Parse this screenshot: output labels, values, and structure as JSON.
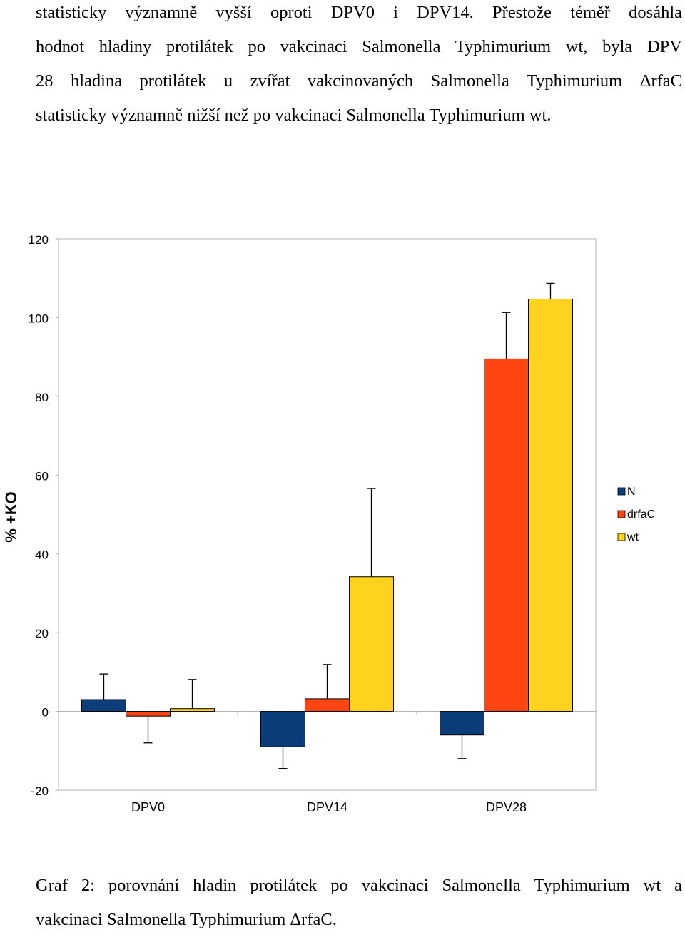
{
  "paragraph_lines": [
    "statisticky významně vyšší oproti DPV0 i DPV14. Přestože téměř dosáhla",
    "hodnot hladiny protilátek po vakcinaci  Salmonella Typhimurium wt, byla DPV",
    "28 hladina protilátek u zvířat vakcinovaných Salmonella Typhimurium ΔrfaC",
    "statisticky významně nižší než po vakcinaci Salmonella Typhimurium wt."
  ],
  "caption_lines": [
    "Graf 2: porovnání hladin protilátek po vakcinaci  Salmonella Typhimurium wt a",
    "vakcinaci  Salmonella Typhimurium ΔrfaC."
  ],
  "chart_data": {
    "type": "bar",
    "categories": [
      "DPV0",
      "DPV14",
      "DPV28"
    ],
    "ylabel": "% +KO",
    "xlabel": "",
    "ylim": [
      -20,
      120
    ],
    "yticks": [
      -20,
      0,
      20,
      40,
      60,
      80,
      100,
      120
    ],
    "grid": false,
    "legend_position": "right",
    "series": [
      {
        "name": "N",
        "color": "#0a3d7a",
        "values": [
          3.0,
          -9.0,
          -6.0
        ],
        "errors": [
          6.5,
          5.5,
          6.0
        ]
      },
      {
        "name": "drfaC",
        "color": "#ff4511",
        "values": [
          -1.2,
          3.2,
          89.5
        ],
        "errors": [
          6.8,
          8.7,
          11.8
        ]
      },
      {
        "name": "wt",
        "color": "#fed320",
        "values": [
          0.7,
          34.2,
          104.7
        ],
        "errors": [
          7.4,
          22.4,
          4.0
        ]
      }
    ]
  }
}
